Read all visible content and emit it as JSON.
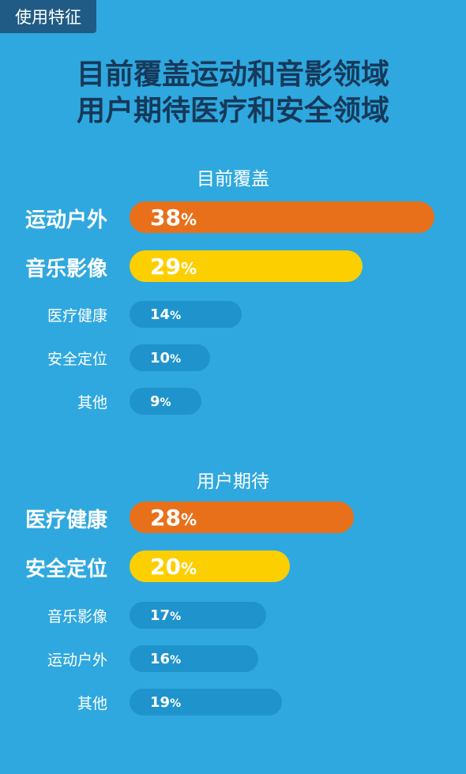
{
  "tag": "使用特征",
  "headline": [
    "目前覆盖运动和音影领域",
    "用户期待医疗和安全领域"
  ],
  "colors": {
    "background": "#2fa8df",
    "rank1": "#e8701a",
    "rank2": "#fccf00",
    "other": "#1f93cc",
    "headline": "#16395a"
  },
  "chart_data": [
    {
      "type": "bar",
      "orientation": "horizontal",
      "title": "目前覆盖",
      "categories": [
        "运动户外",
        "音乐影像",
        "医疗健康",
        "安全定位",
        "其他"
      ],
      "values": [
        38,
        29,
        14,
        10,
        9
      ],
      "labels": [
        "38",
        "29",
        "14",
        "10",
        "9"
      ],
      "unit": "%",
      "xlim": [
        0,
        40
      ],
      "grid": false
    },
    {
      "type": "bar",
      "orientation": "horizontal",
      "title": "用户期待",
      "categories": [
        "医疗健康",
        "安全定位",
        "音乐影像",
        "运动户外",
        "其他"
      ],
      "values": [
        28,
        20,
        17,
        16,
        19
      ],
      "labels": [
        "28",
        "20",
        "17",
        "16",
        "19"
      ],
      "unit": "%",
      "xlim": [
        0,
        40
      ],
      "grid": false
    }
  ]
}
